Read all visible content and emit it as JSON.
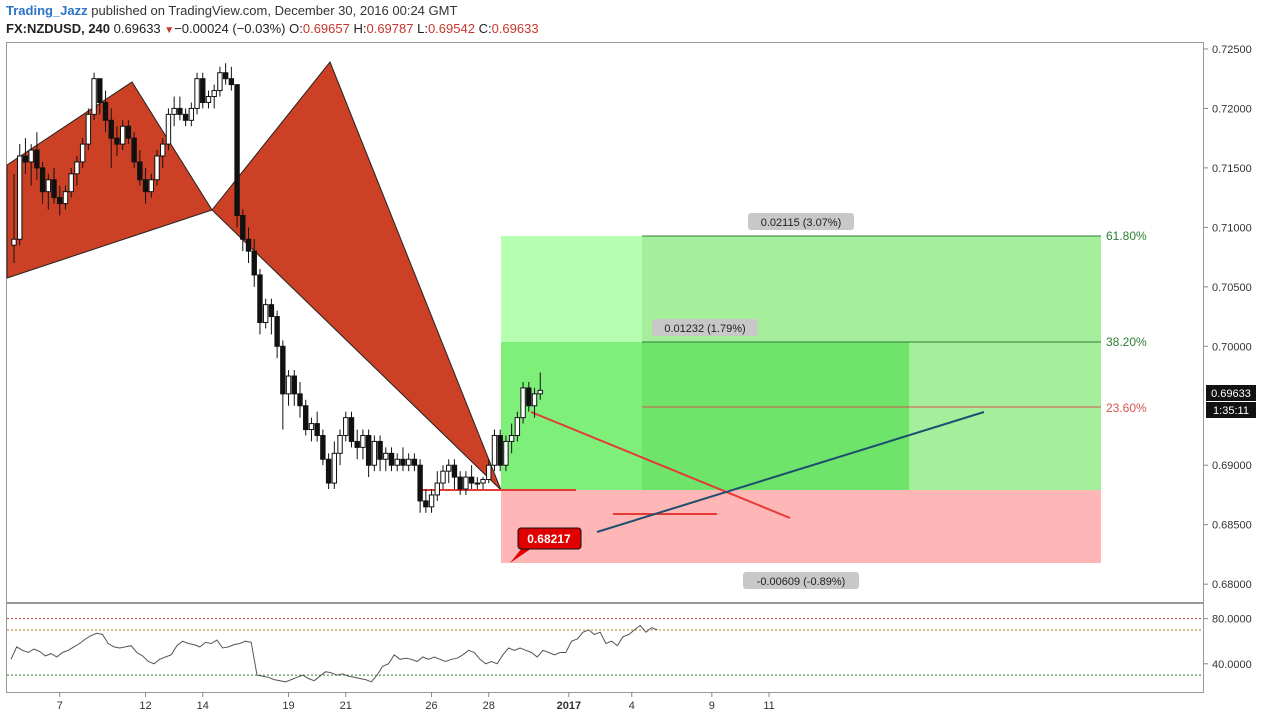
{
  "header": {
    "author": "Trading_Jazz",
    "published": "published on TradingView.com, December 30, 2016 00:24 GMT",
    "symbol": "FX:NZDUSD, 240",
    "last": "0.69633",
    "change": "−0.00024 (−0.03%)",
    "o_label": "O:",
    "o": "0.69657",
    "h_label": "H:",
    "h": "0.69787",
    "l_label": "L:",
    "l": "0.69542",
    "c_label": "C:",
    "c": "0.69633"
  },
  "chart_data": [
    {
      "type": "candlestick",
      "series_name": "FX:NZDUSD, 240",
      "ylim": [
        0.6785,
        0.7255
      ],
      "y_ticks": [
        "0.72500",
        "0.72000",
        "0.71500",
        "0.71000",
        "0.70500",
        "0.70000",
        "0.69000",
        "0.68500",
        "0.68000"
      ],
      "x_ticks": [
        "7",
        "12",
        "14",
        "19",
        "21",
        "26",
        "28",
        "2017",
        "4",
        "9",
        "11"
      ],
      "x_tick_index": [
        8,
        23,
        33,
        48,
        58,
        73,
        83,
        97,
        108,
        122,
        132
      ],
      "candles": [
        [
          0.7085,
          0.7145,
          0.707,
          0.709
        ],
        [
          0.709,
          0.717,
          0.7085,
          0.716
        ],
        [
          0.716,
          0.7175,
          0.7145,
          0.7155
        ],
        [
          0.7155,
          0.717,
          0.7135,
          0.7165
        ],
        [
          0.7165,
          0.718,
          0.714,
          0.715
        ],
        [
          0.715,
          0.7155,
          0.712,
          0.713
        ],
        [
          0.713,
          0.7145,
          0.7115,
          0.714
        ],
        [
          0.714,
          0.715,
          0.712,
          0.7125
        ],
        [
          0.7125,
          0.7135,
          0.711,
          0.712
        ],
        [
          0.712,
          0.7135,
          0.7115,
          0.713
        ],
        [
          0.713,
          0.715,
          0.7125,
          0.7145
        ],
        [
          0.7145,
          0.716,
          0.7135,
          0.7155
        ],
        [
          0.7155,
          0.7175,
          0.715,
          0.717
        ],
        [
          0.717,
          0.72,
          0.7165,
          0.7195
        ],
        [
          0.7195,
          0.723,
          0.719,
          0.7225
        ],
        [
          0.7225,
          0.7225,
          0.7195,
          0.7205
        ],
        [
          0.7205,
          0.7215,
          0.718,
          0.719
        ],
        [
          0.719,
          0.72,
          0.715,
          0.7175
        ],
        [
          0.7175,
          0.7185,
          0.716,
          0.717
        ],
        [
          0.717,
          0.719,
          0.7165,
          0.7185
        ],
        [
          0.7185,
          0.719,
          0.717,
          0.7175
        ],
        [
          0.7175,
          0.718,
          0.715,
          0.7155
        ],
        [
          0.7155,
          0.7165,
          0.7135,
          0.714
        ],
        [
          0.714,
          0.715,
          0.712,
          0.713
        ],
        [
          0.713,
          0.7145,
          0.7125,
          0.714
        ],
        [
          0.714,
          0.7165,
          0.7135,
          0.716
        ],
        [
          0.716,
          0.7175,
          0.715,
          0.717
        ],
        [
          0.717,
          0.72,
          0.7165,
          0.7195
        ],
        [
          0.7195,
          0.721,
          0.7185,
          0.72
        ],
        [
          0.72,
          0.721,
          0.719,
          0.7195
        ],
        [
          0.7195,
          0.72,
          0.7185,
          0.719
        ],
        [
          0.719,
          0.7205,
          0.7185,
          0.72
        ],
        [
          0.72,
          0.723,
          0.7195,
          0.7225
        ],
        [
          0.7225,
          0.723,
          0.72,
          0.7205
        ],
        [
          0.7205,
          0.7215,
          0.72,
          0.721
        ],
        [
          0.721,
          0.722,
          0.72,
          0.7215
        ],
        [
          0.7215,
          0.7235,
          0.721,
          0.723
        ],
        [
          0.723,
          0.7238,
          0.722,
          0.7225
        ],
        [
          0.7225,
          0.7235,
          0.7215,
          0.722
        ],
        [
          0.722,
          0.722,
          0.71,
          0.711
        ],
        [
          0.711,
          0.7115,
          0.708,
          0.709
        ],
        [
          0.709,
          0.71,
          0.707,
          0.708
        ],
        [
          0.708,
          0.709,
          0.705,
          0.706
        ],
        [
          0.706,
          0.7065,
          0.701,
          0.702
        ],
        [
          0.702,
          0.704,
          0.7015,
          0.7035
        ],
        [
          0.7035,
          0.704,
          0.701,
          0.7025
        ],
        [
          0.7025,
          0.703,
          0.699,
          0.7
        ],
        [
          0.7,
          0.7005,
          0.693,
          0.696
        ],
        [
          0.696,
          0.698,
          0.695,
          0.6975
        ],
        [
          0.6975,
          0.698,
          0.695,
          0.696
        ],
        [
          0.696,
          0.697,
          0.694,
          0.695
        ],
        [
          0.695,
          0.6955,
          0.6925,
          0.693
        ],
        [
          0.693,
          0.694,
          0.692,
          0.6935
        ],
        [
          0.6935,
          0.6945,
          0.692,
          0.6925
        ],
        [
          0.6925,
          0.693,
          0.69,
          0.6905
        ],
        [
          0.6905,
          0.691,
          0.688,
          0.6885
        ],
        [
          0.6885,
          0.692,
          0.688,
          0.691
        ],
        [
          0.691,
          0.693,
          0.69,
          0.6925
        ],
        [
          0.6925,
          0.6945,
          0.692,
          0.694
        ],
        [
          0.694,
          0.6945,
          0.6915,
          0.692
        ],
        [
          0.692,
          0.693,
          0.6905,
          0.6915
        ],
        [
          0.6915,
          0.693,
          0.6905,
          0.6925
        ],
        [
          0.6925,
          0.693,
          0.689,
          0.69
        ],
        [
          0.69,
          0.6925,
          0.6895,
          0.692
        ],
        [
          0.692,
          0.6925,
          0.6895,
          0.6905
        ],
        [
          0.6905,
          0.6915,
          0.6895,
          0.691
        ],
        [
          0.691,
          0.6915,
          0.6895,
          0.69
        ],
        [
          0.69,
          0.691,
          0.6895,
          0.6905
        ],
        [
          0.6905,
          0.6915,
          0.6895,
          0.69
        ],
        [
          0.69,
          0.691,
          0.6895,
          0.6905
        ],
        [
          0.6905,
          0.691,
          0.6895,
          0.69
        ],
        [
          0.69,
          0.6905,
          0.686,
          0.687
        ],
        [
          0.687,
          0.688,
          0.686,
          0.6865
        ],
        [
          0.6865,
          0.688,
          0.686,
          0.6875
        ],
        [
          0.6875,
          0.6895,
          0.687,
          0.6885
        ],
        [
          0.6885,
          0.69,
          0.688,
          0.6895
        ],
        [
          0.6895,
          0.6905,
          0.6885,
          0.69
        ],
        [
          0.69,
          0.6905,
          0.688,
          0.689
        ],
        [
          0.689,
          0.6895,
          0.6875,
          0.688
        ],
        [
          0.688,
          0.6895,
          0.6875,
          0.689
        ],
        [
          0.689,
          0.69,
          0.688,
          0.6885
        ],
        [
          0.6885,
          0.689,
          0.688,
          0.6885
        ],
        [
          0.6885,
          0.689,
          0.688,
          0.6888
        ],
        [
          0.6888,
          0.6905,
          0.6885,
          0.69
        ],
        [
          0.69,
          0.693,
          0.6895,
          0.6925
        ],
        [
          0.6925,
          0.693,
          0.6895,
          0.69
        ],
        [
          0.69,
          0.6925,
          0.6895,
          0.692
        ],
        [
          0.692,
          0.6935,
          0.691,
          0.6925
        ],
        [
          0.6925,
          0.6945,
          0.692,
          0.694
        ],
        [
          0.694,
          0.697,
          0.6935,
          0.6965
        ],
        [
          0.6965,
          0.697,
          0.6945,
          0.695
        ],
        [
          0.695,
          0.6965,
          0.694,
          0.696
        ],
        [
          0.696,
          0.6978,
          0.6955,
          0.6963
        ]
      ]
    },
    {
      "type": "line",
      "indicator": "RSI",
      "ylim": [
        15,
        93
      ],
      "y_ticks": [
        "80.0000",
        "40.0000"
      ],
      "levels": [
        80,
        70,
        30
      ],
      "level_colors": [
        "#c0392b",
        "#c07a1a",
        "#2e7d32"
      ],
      "values": [
        44,
        55,
        52,
        50,
        53,
        51,
        47,
        49,
        46,
        50,
        52,
        55,
        58,
        62,
        65,
        67,
        66,
        58,
        55,
        54,
        55,
        56,
        50,
        47,
        42,
        40,
        44,
        46,
        48,
        56,
        60,
        58,
        57,
        55,
        59,
        58,
        61,
        54,
        55,
        57,
        58,
        60,
        59,
        30,
        29,
        28,
        26,
        25,
        24,
        26,
        28,
        30,
        27,
        25,
        29,
        33,
        32,
        30,
        31,
        29,
        28,
        27,
        26,
        24,
        30,
        38,
        40,
        48,
        44,
        45,
        44,
        42,
        46,
        44,
        46,
        44,
        42,
        44,
        45,
        48,
        52,
        50,
        44,
        40,
        42,
        40,
        48,
        54,
        52,
        54,
        52,
        50,
        46,
        52,
        50,
        48,
        50,
        50,
        60,
        62,
        68,
        70,
        66,
        68,
        58,
        60,
        56,
        64,
        66,
        70,
        74,
        68,
        72,
        70
      ]
    }
  ],
  "annotations": {
    "fib_labels": [
      "61.80%",
      "38.20%",
      "23.60%"
    ],
    "fib_colors": [
      "#2e7d32",
      "#2e7d32",
      "#c0392b"
    ],
    "measure_labels": [
      "0.02115 (3.07%)",
      "0.01232 (1.79%)",
      "-0.00609 (-0.89%)"
    ],
    "callout_price": "0.68217",
    "price_tag": "0.69633",
    "countdown": "1:35:11"
  },
  "colors": {
    "pattern_fill": "#cc4125",
    "profit_light": "#b6ffb0",
    "profit_green": "#7cf07c",
    "loss_pink": "#ffb6b6",
    "trendline_red": "#e53935",
    "trendline_blue": "#1f4f6f",
    "callout_red": "#e00000"
  }
}
